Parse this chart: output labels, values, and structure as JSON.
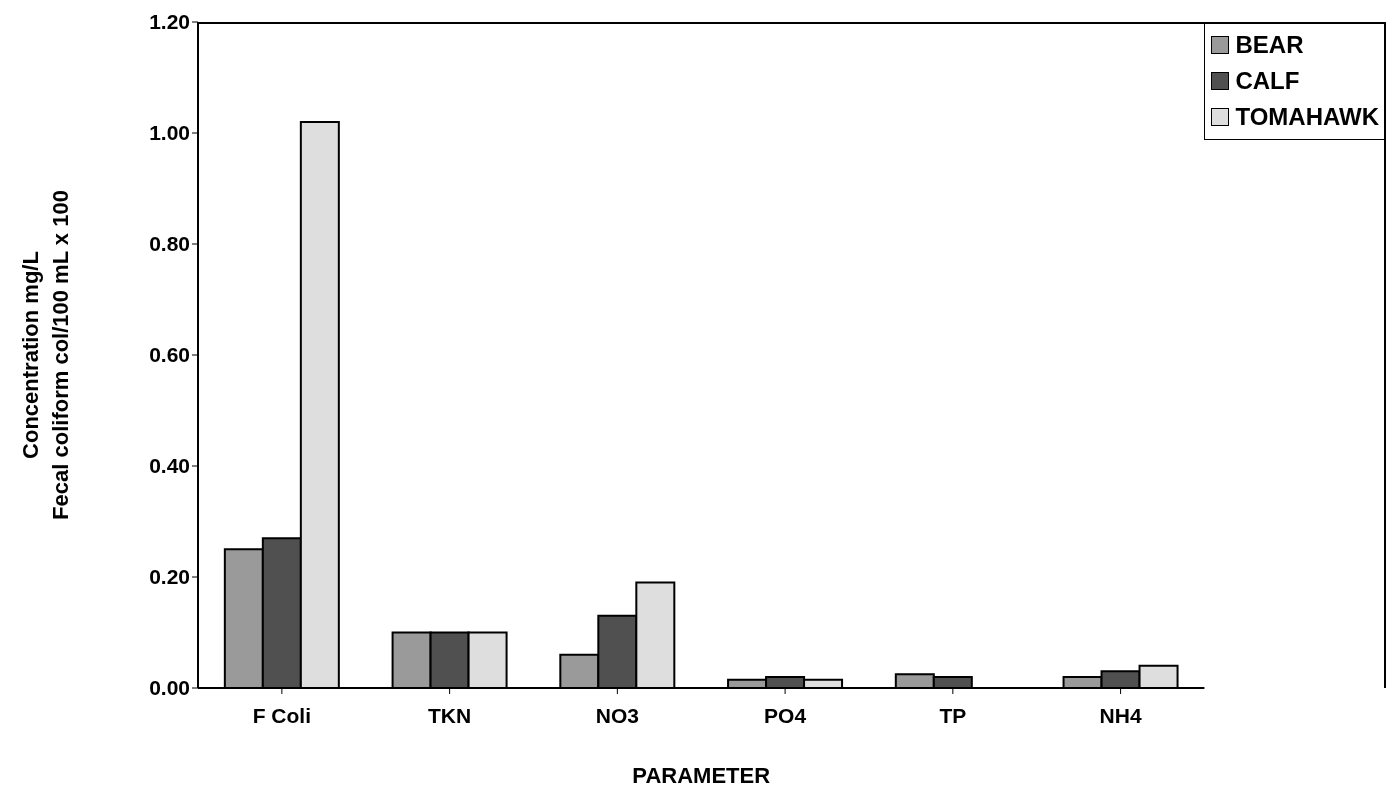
{
  "chart_data": {
    "type": "bar",
    "categories": [
      "F Coli",
      "TKN",
      "NO3",
      "PO4",
      "TP",
      "NH4"
    ],
    "xlabel": "PARAMETER",
    "ylabel": "Concentration  mg/L\nFecal coliform  col/100 mL x 100",
    "series": [
      {
        "name": "BEAR",
        "color": "#9a9a9a",
        "values": [
          0.25,
          0.1,
          0.06,
          0.015,
          0.025,
          0.02
        ]
      },
      {
        "name": "CALF",
        "color": "#505050",
        "values": [
          0.27,
          0.1,
          0.13,
          0.02,
          0.02,
          0.03
        ]
      },
      {
        "name": "TOMAHAWK",
        "color": "#dedede",
        "values": [
          1.02,
          0.1,
          0.19,
          0.015,
          0,
          0.04
        ]
      }
    ],
    "ylim": [
      0,
      1.2
    ],
    "yticks": [
      {
        "value": 0,
        "label": "0.00"
      },
      {
        "value": 0.2,
        "label": "0.20"
      },
      {
        "value": 0.4,
        "label": "0.40"
      },
      {
        "value": 0.6,
        "label": "0.60"
      },
      {
        "value": 0.8,
        "label": "0.80"
      },
      {
        "value": 1.0,
        "label": "1.00"
      },
      {
        "value": 1.2,
        "label": "1.20"
      }
    ],
    "grid": false,
    "legend": "top right"
  }
}
